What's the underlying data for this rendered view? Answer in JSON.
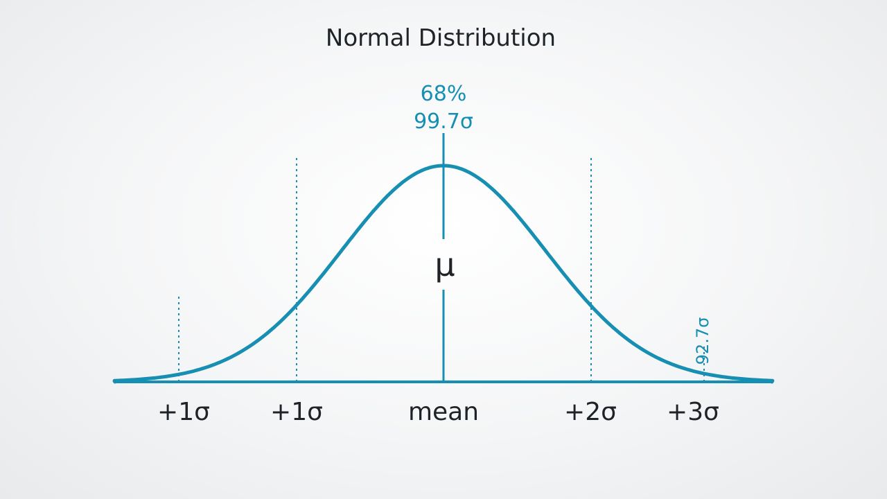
{
  "chart_data": {
    "type": "line",
    "title": "Normal Distribution",
    "xlabel": "",
    "ylabel": "",
    "xlim": [
      -2.6,
      3.1
    ],
    "ylim": [
      0,
      1
    ],
    "grid": false,
    "legend": "none",
    "color": "#168fb3",
    "series": [
      {
        "values": [
          0.011,
          0.028,
          0.066,
          0.135,
          0.245,
          0.411,
          0.607,
          0.8,
          0.946,
          1.0,
          0.946,
          0.8,
          0.607,
          0.411,
          0.245,
          0.135,
          0.066,
          0.028,
          0.011
        ]
      }
    ],
    "x": [
      -2.25,
      -2.0,
      -1.75,
      -1.5,
      -1.25,
      -1.0,
      -0.75,
      -0.5,
      -0.25,
      0,
      0.25,
      0.5,
      0.75,
      1.0,
      1.25,
      1.5,
      1.75,
      2.0,
      2.25
    ],
    "ticks": [
      {
        "x": -2,
        "label": "+1σ"
      },
      {
        "x": -1,
        "label": "+1σ"
      },
      {
        "x": 0,
        "label": "mean"
      },
      {
        "x": 1,
        "label": "+2σ"
      },
      {
        "x": 2,
        "label": "+3σ"
      }
    ],
    "annotations": {
      "top_line1": "68%",
      "top_line2": "99.7σ",
      "center": "μ",
      "side": "92.7σ"
    }
  }
}
